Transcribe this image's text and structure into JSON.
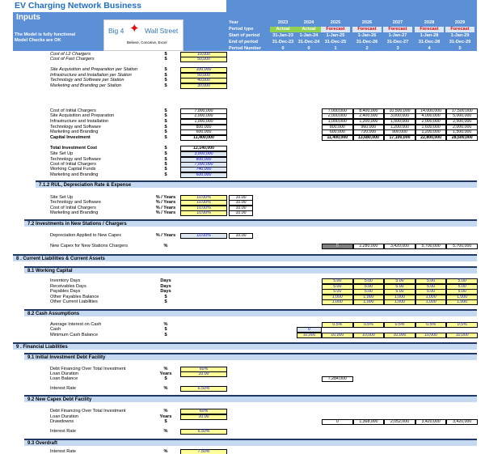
{
  "header": {
    "title": "EV Charging Network Business",
    "subtitle": "Inputs",
    "status_lines": [
      "The Model is fully functional",
      "Model Checks are OK"
    ],
    "logo": {
      "text_left": "Big 4",
      "text_right": "Wall Street",
      "tagline": "Believe, Conceive, Excel"
    },
    "timeline": {
      "labels": [
        "Year",
        "Period type",
        "Start of period",
        "End of period",
        "Period Number"
      ],
      "columns": [
        {
          "year": "2023",
          "type": "Actual",
          "start": "31-Jan-23",
          "end": "31-Dec-23",
          "number": "0"
        },
        {
          "year": "2024",
          "type": "Actual",
          "start": "1-Jan-24",
          "end": "31-Dec-24",
          "number": "0"
        },
        {
          "year": "2025",
          "type": "Forecast",
          "start": "1-Jan-25",
          "end": "31-Dec-25",
          "number": "1"
        },
        {
          "year": "2026",
          "type": "Forecast",
          "start": "1-Jan-26",
          "end": "31-Dec-26",
          "number": "2"
        },
        {
          "year": "2027",
          "type": "Forecast",
          "start": "1-Jan-27",
          "end": "31-Dec-27",
          "number": "3"
        },
        {
          "year": "2028",
          "type": "Forecast",
          "start": "1-Jan-28",
          "end": "31-Dec-28",
          "number": "4"
        },
        {
          "year": "2029",
          "type": "Forecast",
          "start": "1-Jan-29",
          "end": "31-Dec-29",
          "number": "5"
        }
      ]
    }
  },
  "colors": {
    "accent": "#5b8fd6",
    "title": "#1f6fc5",
    "input": "#ffff99",
    "section": "#c5d9f1",
    "actual": "#92d050",
    "forecast_text": "#e00000"
  },
  "items": [
    {
      "label": "Cost of L2 Chargers",
      "unit": "$",
      "input": "10,000",
      "kind": "input",
      "italic": true
    },
    {
      "label": "Cost of Fast Chargers",
      "unit": "$",
      "input": "50,000",
      "kind": "input",
      "italic": true
    },
    {
      "label": "Site Acquisition and Preparation per Station",
      "unit": "$",
      "input": "100,000",
      "kind": "input",
      "italic": true
    },
    {
      "label": "Infrastructure and Installation per Station",
      "unit": "$",
      "input": "50,000",
      "kind": "input",
      "italic": true
    },
    {
      "label": "Technology and Software per Station",
      "unit": "$",
      "input": "40,000",
      "kind": "input",
      "italic": true
    },
    {
      "label": "Marketing and Branding per Station",
      "unit": "$",
      "input": "30,000",
      "kind": "input",
      "italic": true
    },
    {
      "label": "Cost of Initial Chargers",
      "unit": "$",
      "input": "7,000,000",
      "kind": "calc",
      "series": [
        "7,000,000",
        "8,400,000",
        "10,500,000",
        "14,000,000",
        "17,500,000"
      ],
      "series_kind": "calc"
    },
    {
      "label": "Site Acquisition and Preparation",
      "unit": "$",
      "input": "2,000,000",
      "kind": "calc",
      "series": [
        "2,000,000",
        "2,400,000",
        "3,000,000",
        "4,000,000",
        "5,000,000"
      ],
      "series_kind": "calc"
    },
    {
      "label": "Infrastructure and Installation",
      "unit": "$",
      "input": "1,000,000",
      "kind": "calc",
      "series": [
        "1,000,000",
        "1,200,000",
        "1,500,000",
        "2,000,000",
        "2,500,000"
      ],
      "series_kind": "calc"
    },
    {
      "label": "Technology and Software",
      "unit": "$",
      "input": "800,000",
      "kind": "calc",
      "series": [
        "800,000",
        "960,000",
        "1,200,000",
        "1,600,000",
        "2,000,000"
      ],
      "series_kind": "calc"
    },
    {
      "label": "Marketing and Branding",
      "unit": "$",
      "input": "600,000",
      "kind": "calc",
      "series": [
        "600,000",
        "720,000",
        "900,000",
        "1,200,000",
        "1,500,000"
      ],
      "series_kind": "calc"
    },
    {
      "label": "Capital Investment",
      "unit": "$",
      "input": "11,400,000",
      "kind": "calc",
      "bold": true,
      "series": [
        "11,400,000",
        "13,680,000",
        "17,100,000",
        "22,800,000",
        "28,500,000"
      ],
      "series_kind": "calc"
    },
    {
      "label": "Total Investment Cost",
      "unit": "$",
      "input": "12,140,000",
      "kind": "calc",
      "bold": true
    },
    {
      "label": "Site Set Up",
      "unit": "$",
      "input": "3,000,000",
      "kind": "link"
    },
    {
      "label": "Technology and Software",
      "unit": "$",
      "input": "800,000",
      "kind": "link"
    },
    {
      "label": "Cost of Initial Chargers",
      "unit": "$",
      "input": "7,000,000",
      "kind": "link"
    },
    {
      "label": "Working Capital Funds",
      "unit": "$",
      "input": "740,000",
      "kind": "link"
    },
    {
      "label": "Marketing and Branding",
      "unit": "$",
      "input": "600,000",
      "kind": "link"
    },
    {
      "section": "7.1.2 RUL, Depreciation Rate & Expense"
    },
    {
      "label": "Site Set Up",
      "unit": "% / Years",
      "input": "10.00%",
      "kind": "input",
      "input2": "10.00"
    },
    {
      "label": "Technology and Software",
      "unit": "% / Years",
      "input": "10.00%",
      "kind": "input",
      "input2": "10.00"
    },
    {
      "label": "Cost of Initial Chargers",
      "unit": "% / Years",
      "input": "10.00%",
      "kind": "input",
      "input2": "10.00"
    },
    {
      "label": "Marketing and Branding",
      "unit": "% / Years",
      "input": "10.00%",
      "kind": "input",
      "input2": "10.00"
    },
    {
      "section": "7.2   Investments in New Stations / Chargers"
    },
    {
      "label": "Depreciation Applied to New Capex",
      "unit": "% / Years",
      "input": "10.00%",
      "kind": "link",
      "input2": "10.00"
    },
    {
      "label": "New Capex for New Stations Chargers",
      "unit": "%",
      "series": [
        "0",
        "2,280,000",
        "3,420,000",
        "5,700,000",
        "5,700,000"
      ],
      "series_kind": "calc",
      "first_grey": true
    },
    {
      "section": "8 . Current Liabilities & Current Assets"
    },
    {
      "section": "8.1   Working Capital"
    },
    {
      "label": "Inventory Days",
      "unit": "Days",
      "series": [
        "5.00",
        "5.00",
        "5.00",
        "5.00",
        "5.00"
      ],
      "series_kind": "input"
    },
    {
      "label": "Receivables Days",
      "unit": "Days",
      "series": [
        "5.00",
        "5.00",
        "5.00",
        "5.00",
        "5.00"
      ],
      "series_kind": "input"
    },
    {
      "label": "Payables Days",
      "unit": "Days",
      "series": [
        "5.00",
        "5.00",
        "5.00",
        "5.00",
        "5.00"
      ],
      "series_kind": "input"
    },
    {
      "label": "Other Payables Balance",
      "unit": "$",
      "series": [
        "1,000",
        "1,000",
        "1,000",
        "1,000",
        "1,000"
      ],
      "series_kind": "input"
    },
    {
      "label": "Other Current Liabilities",
      "unit": "$",
      "series": [
        "1,000",
        "1,000",
        "1,000",
        "1,000",
        "1,000"
      ],
      "series_kind": "input"
    },
    {
      "section": "8.2   Cash Assumptions"
    },
    {
      "label": "Average Interest on Cash",
      "unit": "%",
      "series": [
        "0.5%",
        "0.5%",
        "0.5%",
        "0.5%",
        "0.5%"
      ],
      "series_kind": "input"
    },
    {
      "label": "Cash",
      "unit": "$",
      "opening": "0",
      "opening_kind": "link"
    },
    {
      "label": "Minimum Cash Balance",
      "unit": "$",
      "opening": "10,000",
      "opening_kind": "input",
      "series": [
        "10,000",
        "10,000",
        "10,000",
        "10,000",
        "10,000"
      ],
      "series_kind": "input"
    },
    {
      "section": "9 . Financial Liabilities"
    },
    {
      "section": "9.1   Initial Investment Debt Facility"
    },
    {
      "label": "Debt Financing Over Total Investment",
      "unit": "%",
      "input": "60%",
      "kind": "input"
    },
    {
      "label": "Loan Duration",
      "unit": "Years",
      "input": "10.00",
      "kind": "input"
    },
    {
      "label": "Loan Balance",
      "unit": "$",
      "series": [
        "7,284,000"
      ],
      "series_kind": "calc"
    },
    {
      "label": "Interest Rate",
      "unit": "%",
      "input": "6.50%",
      "kind": "input"
    },
    {
      "section": "9.2   New Capex Debt Facility"
    },
    {
      "label": "Debt Financing Over Total Investment",
      "unit": "%",
      "input": "60%",
      "kind": "input"
    },
    {
      "label": "Loan Duration",
      "unit": "Years",
      "input": "10.00",
      "kind": "input"
    },
    {
      "label": "Drawdowns",
      "unit": "$",
      "series": [
        "0",
        "1,368,000",
        "2,052,000",
        "3,420,000",
        "3,420,000"
      ],
      "series_kind": "calc"
    },
    {
      "label": "Interest Rate",
      "unit": "%",
      "input": "6.50%",
      "kind": "input"
    },
    {
      "section": "9.3   Overdraft"
    },
    {
      "label": "Interest Rate",
      "unit": "%",
      "input": "7.50%",
      "kind": "input"
    }
  ]
}
